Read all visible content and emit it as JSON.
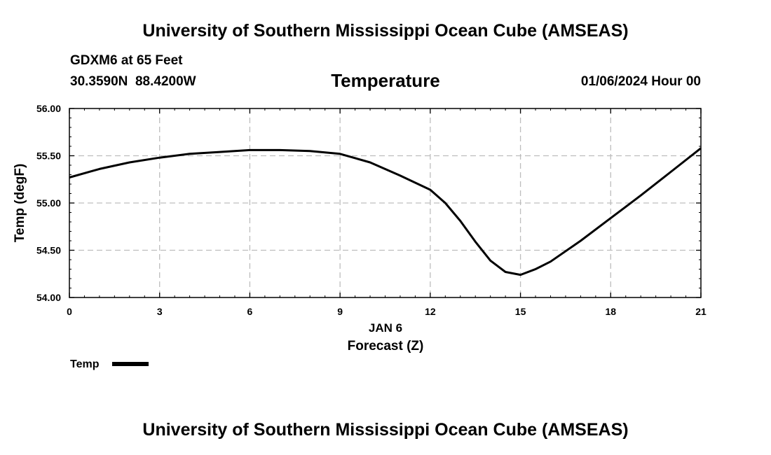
{
  "page": {
    "title_top": "University of Southern Mississippi Ocean Cube (AMSEAS)",
    "title_bottom": "University of Southern Mississippi Ocean Cube (AMSEAS)",
    "station_line": "GDXM6 at 65 Feet",
    "coords_line": "30.3590N  88.4200W",
    "date_line": "01/06/2024 Hour 00"
  },
  "chart_data": {
    "type": "line",
    "title": "Temperature",
    "xlabel": "Forecast (Z)",
    "xlabel_date": "JAN 6",
    "ylabel": "Temp (degF)",
    "xlim": [
      0,
      21
    ],
    "ylim": [
      54.0,
      56.0
    ],
    "xticks": [
      0,
      3,
      6,
      9,
      12,
      15,
      18,
      21
    ],
    "xtick_labels": [
      "0",
      "3",
      "6",
      "9",
      "12",
      "15",
      "18",
      "21"
    ],
    "yticks": [
      54.0,
      54.5,
      55.0,
      55.5,
      56.0
    ],
    "ytick_labels": [
      "54.00",
      "54.50",
      "55.00",
      "55.50",
      "56.00"
    ],
    "grid": true,
    "series": [
      {
        "name": "Temp",
        "color": "#000000",
        "x": [
          0,
          1,
          2,
          3,
          4,
          5,
          6,
          7,
          8,
          9,
          10,
          11,
          12,
          12.5,
          13,
          13.5,
          14,
          14.5,
          15,
          15.5,
          16,
          17,
          18,
          19,
          20,
          21
        ],
        "y": [
          55.27,
          55.36,
          55.43,
          55.48,
          55.52,
          55.54,
          55.56,
          55.56,
          55.55,
          55.52,
          55.43,
          55.29,
          55.14,
          55.0,
          54.81,
          54.59,
          54.39,
          54.27,
          54.24,
          54.3,
          54.38,
          54.6,
          54.84,
          55.08,
          55.33,
          55.58
        ]
      }
    ],
    "legend": {
      "label": "Temp",
      "position": "bottom-left"
    }
  }
}
